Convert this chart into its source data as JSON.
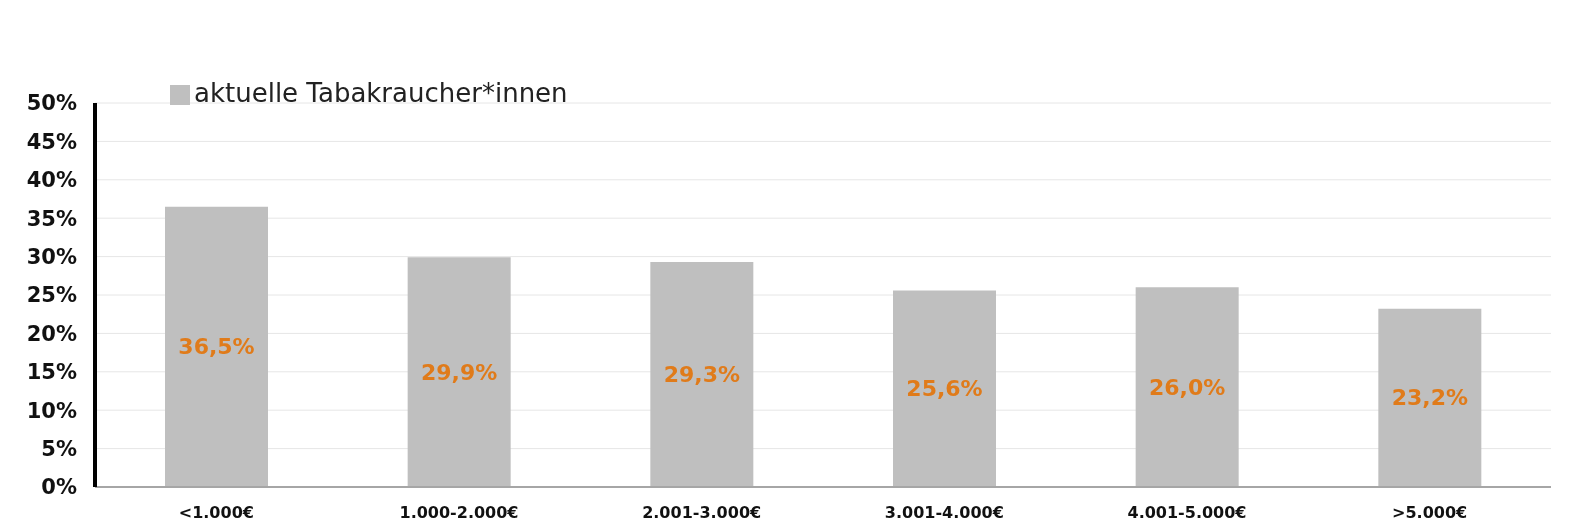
{
  "chart_data": {
    "type": "bar",
    "categories": [
      "<1.000€",
      "1.000-2.000€",
      "2.001-3.000€",
      "3.001-4.000€",
      "4.001-5.000€",
      ">5.000€"
    ],
    "series": [
      {
        "name": "aktuelle Tabakraucher*innen",
        "color": "#bfbfbf",
        "values": [
          36.5,
          29.9,
          29.3,
          25.6,
          26.0,
          23.2
        ],
        "value_labels": [
          "36,5%",
          "29,9%",
          "29,3%",
          "25,6%",
          "26,0%",
          "23,2%"
        ]
      }
    ],
    "ylim": [
      0,
      50
    ],
    "yticks": [
      {
        "value": 0,
        "label": "0%"
      },
      {
        "value": 5,
        "label": "5%"
      },
      {
        "value": 10,
        "label": "10%"
      },
      {
        "value": 15,
        "label": "15%"
      },
      {
        "value": 20,
        "label": "20%"
      },
      {
        "value": 25,
        "label": "25%"
      },
      {
        "value": 30,
        "label": "30%"
      },
      {
        "value": 35,
        "label": "35%"
      },
      {
        "value": 40,
        "label": "40%"
      },
      {
        "value": 45,
        "label": "45%"
      },
      {
        "value": 50,
        "label": "50%"
      }
    ],
    "grid": "y",
    "legend": "top left"
  }
}
